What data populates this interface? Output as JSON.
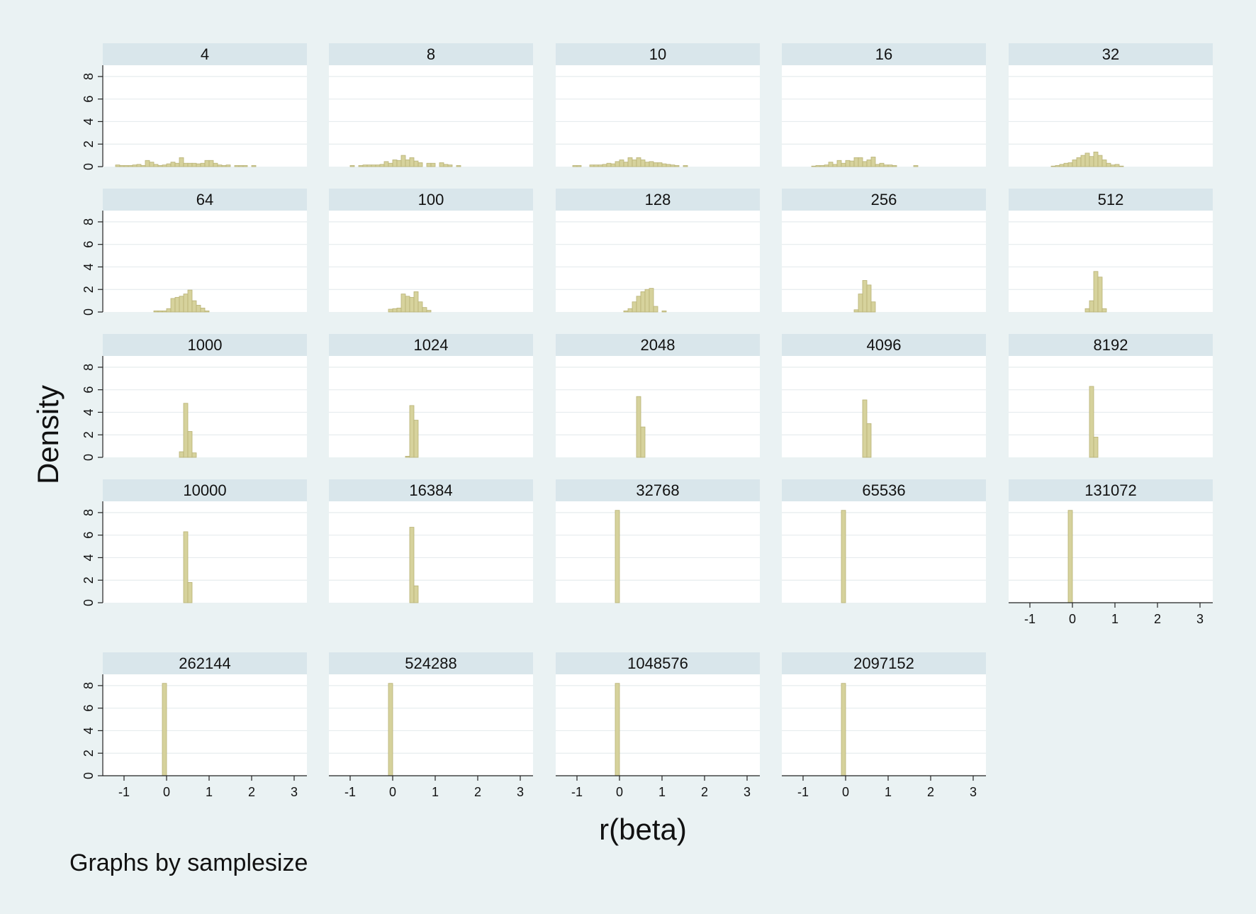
{
  "chart_data": {
    "type": "bar",
    "subtype": "histogram-small-multiples",
    "xlabel": "r(beta)",
    "ylabel": "Density",
    "note": "Graphs by samplesize",
    "xlim": [
      -1.5,
      3.3
    ],
    "ylim": [
      0,
      9
    ],
    "xticks": [
      -1,
      0,
      1,
      2,
      3
    ],
    "yticks": [
      0,
      2,
      4,
      6,
      8
    ],
    "grid": true,
    "colors": {
      "background": "#eaf2f3",
      "plot_bg": "#ffffff",
      "strip_bg": "#d9e6eb",
      "bar_fill": "#d6d29c",
      "bar_edge": "#b8b276",
      "grid": "#e6ecee",
      "axis": "#222222"
    },
    "panels": [
      {
        "label": "4",
        "bin_width": 0.1,
        "x": [
          -1.2,
          -1.1,
          -1.0,
          -0.9,
          -0.8,
          -0.7,
          -0.6,
          -0.5,
          -0.4,
          -0.3,
          -0.2,
          -0.1,
          0.0,
          0.1,
          0.2,
          0.3,
          0.4,
          0.5,
          0.6,
          0.7,
          0.8,
          0.9,
          1.0,
          1.1,
          1.2,
          1.3,
          1.4,
          1.5,
          1.6,
          1.7,
          1.8,
          1.9,
          2.0,
          2.1,
          2.2,
          2.3,
          2.4,
          2.5,
          2.6,
          2.7
        ],
        "density": [
          0.15,
          0.1,
          0.1,
          0.1,
          0.15,
          0.2,
          0.1,
          0.55,
          0.4,
          0.2,
          0.1,
          0.15,
          0.25,
          0.4,
          0.3,
          0.8,
          0.3,
          0.3,
          0.3,
          0.25,
          0.3,
          0.55,
          0.55,
          0.3,
          0.15,
          0.1,
          0.15,
          0.0,
          0.1,
          0.1,
          0.1,
          0.0,
          0.1,
          0.0,
          0.0,
          0.0,
          0.0,
          0.0,
          0.0,
          0.0
        ]
      },
      {
        "label": "8",
        "bin_width": 0.1,
        "x": [
          -1.0,
          -0.9,
          -0.8,
          -0.7,
          -0.6,
          -0.5,
          -0.4,
          -0.3,
          -0.2,
          -0.1,
          0.0,
          0.1,
          0.2,
          0.3,
          0.4,
          0.5,
          0.6,
          0.7,
          0.8,
          0.9,
          1.0,
          1.1,
          1.2,
          1.3,
          1.4,
          1.5,
          1.6,
          1.7,
          1.8,
          1.9,
          2.0
        ],
        "density": [
          0.1,
          0.0,
          0.1,
          0.15,
          0.15,
          0.15,
          0.15,
          0.2,
          0.45,
          0.3,
          0.6,
          0.55,
          1.0,
          0.6,
          0.8,
          0.5,
          0.35,
          0.0,
          0.3,
          0.3,
          0.0,
          0.35,
          0.2,
          0.15,
          0.0,
          0.1,
          0.0,
          0.0,
          0.0,
          0.0,
          0.0
        ]
      },
      {
        "label": "10",
        "bin_width": 0.1,
        "x": [
          -1.1,
          -1.0,
          -0.9,
          -0.8,
          -0.7,
          -0.6,
          -0.5,
          -0.4,
          -0.3,
          -0.2,
          -0.1,
          0.0,
          0.1,
          0.2,
          0.3,
          0.4,
          0.5,
          0.6,
          0.7,
          0.8,
          0.9,
          1.0,
          1.1,
          1.2,
          1.3,
          1.4,
          1.5,
          1.6,
          1.7,
          1.8,
          1.9,
          2.0
        ],
        "density": [
          0.1,
          0.1,
          0.0,
          0.0,
          0.15,
          0.15,
          0.15,
          0.2,
          0.3,
          0.25,
          0.45,
          0.6,
          0.4,
          0.8,
          0.6,
          0.8,
          0.6,
          0.4,
          0.45,
          0.35,
          0.35,
          0.25,
          0.2,
          0.15,
          0.1,
          0.0,
          0.1,
          0.0,
          0.0,
          0.0,
          0.0,
          0.0
        ]
      },
      {
        "label": "16",
        "bin_width": 0.1,
        "x": [
          -0.8,
          -0.7,
          -0.6,
          -0.5,
          -0.4,
          -0.3,
          -0.2,
          -0.1,
          0.0,
          0.1,
          0.2,
          0.3,
          0.4,
          0.5,
          0.6,
          0.7,
          0.8,
          0.9,
          1.0,
          1.1,
          1.2,
          1.3,
          1.4,
          1.5,
          1.6,
          1.7,
          1.8,
          1.9,
          2.0,
          2.1,
          2.2
        ],
        "density": [
          0.05,
          0.1,
          0.1,
          0.15,
          0.4,
          0.2,
          0.55,
          0.3,
          0.55,
          0.5,
          0.8,
          0.8,
          0.45,
          0.6,
          0.85,
          0.2,
          0.3,
          0.15,
          0.15,
          0.1,
          0.0,
          0.0,
          0.0,
          0.0,
          0.1,
          0.0,
          0.0,
          0.0,
          0.0,
          0.0,
          0.0
        ]
      },
      {
        "label": "32",
        "bin_width": 0.1,
        "x": [
          -0.5,
          -0.4,
          -0.3,
          -0.2,
          -0.1,
          0.0,
          0.1,
          0.2,
          0.3,
          0.4,
          0.5,
          0.6,
          0.7,
          0.8,
          0.9,
          1.0,
          1.1,
          1.2,
          1.3,
          1.4,
          1.5,
          1.6
        ],
        "density": [
          0.05,
          0.1,
          0.2,
          0.3,
          0.35,
          0.6,
          0.8,
          1.0,
          1.2,
          0.9,
          1.3,
          1.0,
          0.6,
          0.3,
          0.15,
          0.2,
          0.05,
          0.0,
          0.0,
          0.0,
          0.0,
          0.0
        ]
      },
      {
        "label": "64",
        "bin_width": 0.1,
        "x": [
          -0.3,
          -0.2,
          -0.1,
          0.0,
          0.1,
          0.2,
          0.3,
          0.4,
          0.5,
          0.6,
          0.7,
          0.8,
          0.9,
          1.0,
          1.1,
          1.2
        ],
        "density": [
          0.1,
          0.1,
          0.1,
          0.3,
          1.2,
          1.3,
          1.4,
          1.6,
          1.95,
          1.0,
          0.6,
          0.35,
          0.1,
          0.0,
          0.0,
          0.0
        ]
      },
      {
        "label": "100",
        "bin_width": 0.1,
        "x": [
          -0.1,
          0.0,
          0.1,
          0.2,
          0.3,
          0.4,
          0.5,
          0.6,
          0.7,
          0.8,
          0.9,
          1.0,
          1.1,
          1.2
        ],
        "density": [
          0.25,
          0.3,
          0.35,
          1.6,
          1.4,
          1.3,
          1.8,
          0.9,
          0.4,
          0.15,
          0.0,
          0.0,
          0.0,
          0.0
        ]
      },
      {
        "label": "128",
        "bin_width": 0.1,
        "x": [
          0.1,
          0.2,
          0.3,
          0.4,
          0.5,
          0.6,
          0.7,
          0.8,
          0.9,
          1.0,
          1.1,
          1.2
        ],
        "density": [
          0.1,
          0.3,
          0.9,
          1.4,
          1.8,
          2.0,
          2.1,
          0.5,
          0.0,
          0.1,
          0.0,
          0.0
        ]
      },
      {
        "label": "256",
        "bin_width": 0.1,
        "x": [
          0.2,
          0.3,
          0.4,
          0.5,
          0.6,
          0.7,
          0.8,
          0.9
        ],
        "density": [
          0.2,
          1.6,
          2.8,
          2.4,
          0.9,
          0.0,
          0.0,
          0.0
        ]
      },
      {
        "label": "512",
        "bin_width": 0.1,
        "x": [
          0.3,
          0.4,
          0.5,
          0.6,
          0.7,
          0.8
        ],
        "density": [
          0.3,
          1.0,
          3.6,
          3.1,
          0.3,
          0.0
        ]
      },
      {
        "label": "1000",
        "bin_width": 0.1,
        "x": [
          0.3,
          0.4,
          0.5,
          0.6,
          0.7
        ],
        "density": [
          0.5,
          4.8,
          2.3,
          0.4,
          0.0
        ]
      },
      {
        "label": "1024",
        "bin_width": 0.1,
        "x": [
          0.3,
          0.4,
          0.5,
          0.6
        ],
        "density": [
          0.1,
          4.6,
          3.3,
          0.0
        ]
      },
      {
        "label": "2048",
        "bin_width": 0.1,
        "x": [
          0.4,
          0.5,
          0.6
        ],
        "density": [
          5.4,
          2.7,
          0.0
        ]
      },
      {
        "label": "4096",
        "bin_width": 0.1,
        "x": [
          0.4,
          0.5,
          0.6
        ],
        "density": [
          5.1,
          3.0,
          0.0
        ]
      },
      {
        "label": "8192",
        "bin_width": 0.1,
        "x": [
          0.4,
          0.5,
          0.6
        ],
        "density": [
          6.3,
          1.8,
          0.0
        ]
      },
      {
        "label": "10000",
        "bin_width": 0.1,
        "x": [
          0.4,
          0.5,
          0.6
        ],
        "density": [
          6.3,
          1.8,
          0.0
        ]
      },
      {
        "label": "16384",
        "bin_width": 0.1,
        "x": [
          0.4,
          0.5,
          0.6
        ],
        "density": [
          6.7,
          1.5,
          0.0
        ]
      },
      {
        "label": "32768",
        "bin_width": 0.1,
        "x": [
          -0.1
        ],
        "density": [
          8.2
        ]
      },
      {
        "label": "65536",
        "bin_width": 0.1,
        "x": [
          -0.1
        ],
        "density": [
          8.2
        ]
      },
      {
        "label": "131072",
        "bin_width": 0.1,
        "x": [
          -0.1
        ],
        "density": [
          8.2
        ]
      },
      {
        "label": "262144",
        "bin_width": 0.1,
        "x": [
          -0.1
        ],
        "density": [
          8.2
        ]
      },
      {
        "label": "524288",
        "bin_width": 0.1,
        "x": [
          -0.1
        ],
        "density": [
          8.2
        ]
      },
      {
        "label": "1048576",
        "bin_width": 0.1,
        "x": [
          -0.1
        ],
        "density": [
          8.2
        ]
      },
      {
        "label": "2097152",
        "bin_width": 0.1,
        "x": [
          -0.1
        ],
        "density": [
          8.2
        ]
      }
    ]
  }
}
